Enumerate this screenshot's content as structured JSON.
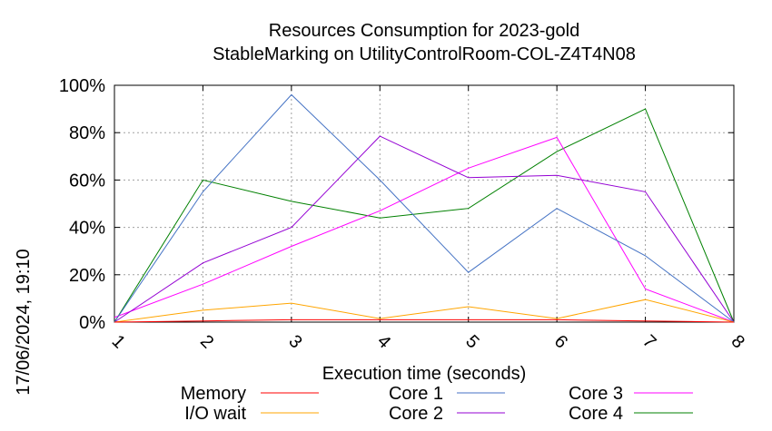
{
  "chart_data": {
    "type": "line",
    "title": "Resources Consumption for 2023-gold",
    "subtitle": "StableMarking on UtilityControlRoom-COL-Z4T4N08",
    "xlabel": "Execution time (seconds)",
    "ylabel": "",
    "side_label": "17/06/2024, 19:10",
    "x": [
      1,
      2,
      3,
      4,
      5,
      6,
      7,
      8
    ],
    "xlim": [
      1,
      8
    ],
    "ylim": [
      0,
      100
    ],
    "y_ticks": [
      "0%",
      "20%",
      "40%",
      "60%",
      "80%",
      "100%"
    ],
    "x_ticks": [
      "1",
      "2",
      "3",
      "4",
      "5",
      "6",
      "7",
      "8"
    ],
    "grid": true,
    "legend_position": "bottom",
    "series": [
      {
        "name": "Memory",
        "color": "#ff0000",
        "values": [
          0,
          0.5,
          1,
          1,
          1,
          1,
          0.5,
          0
        ]
      },
      {
        "name": "I/O wait",
        "color": "#ffa500",
        "values": [
          0,
          5,
          8,
          1.5,
          6.5,
          1.5,
          9.5,
          0
        ]
      },
      {
        "name": "Core 1",
        "color": "#4472c4",
        "values": [
          0,
          55,
          96,
          60,
          21,
          48,
          28,
          0
        ]
      },
      {
        "name": "Core 2",
        "color": "#9400d3",
        "values": [
          0,
          25,
          40,
          78.5,
          61,
          62,
          55,
          0
        ]
      },
      {
        "name": "Core 3",
        "color": "#ff00ff",
        "values": [
          2,
          16,
          32,
          47,
          65,
          78,
          14,
          0
        ]
      },
      {
        "name": "Core 4",
        "color": "#008000",
        "values": [
          0,
          60,
          51,
          44,
          48,
          72,
          90,
          0
        ]
      }
    ]
  }
}
